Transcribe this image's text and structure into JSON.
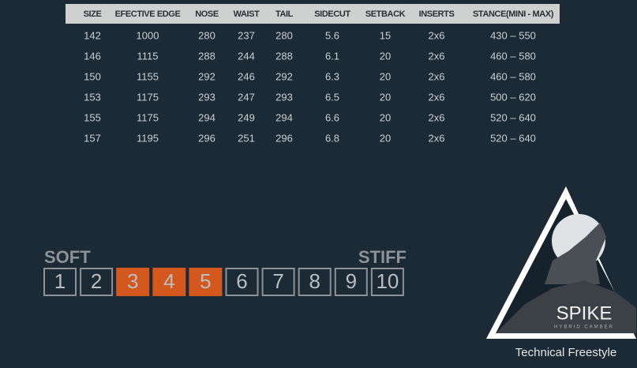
{
  "table": {
    "header": [
      "SIZE",
      "EFECTIVE EDGE",
      "NOSE",
      "WAIST",
      "TAIL",
      "SIDECUT",
      "SETBACK",
      "INSERTS",
      "STANCE(MINI - MAX)"
    ],
    "rows": [
      [
        "142",
        "1000",
        "280",
        "237",
        "280",
        "5.6",
        "15",
        "2x6",
        "430 – 550"
      ],
      [
        "146",
        "1115",
        "288",
        "244",
        "288",
        "6.1",
        "20",
        "2x6",
        "460 – 580"
      ],
      [
        "150",
        "1155",
        "292",
        "246",
        "292",
        "6.3",
        "20",
        "2x6",
        "460 – 580"
      ],
      [
        "153",
        "1175",
        "293",
        "247",
        "293",
        "6.5",
        "20",
        "2x6",
        "500 – 620"
      ],
      [
        "155",
        "1175",
        "294",
        "249",
        "294",
        "6.6",
        "20",
        "2x6",
        "520 – 640"
      ],
      [
        "157",
        "1195",
        "296",
        "251",
        "296",
        "6.8",
        "20",
        "2x6",
        "520 – 640"
      ]
    ]
  },
  "flex": {
    "soft_label": "SOFT",
    "stiff_label": "STIFF",
    "boxes": [
      {
        "label": "1",
        "highlighted": false
      },
      {
        "label": "2",
        "highlighted": false
      },
      {
        "label": "3",
        "highlighted": true
      },
      {
        "label": "4",
        "highlighted": true
      },
      {
        "label": "5",
        "highlighted": true
      },
      {
        "label": "6",
        "highlighted": false
      },
      {
        "label": "7",
        "highlighted": false
      },
      {
        "label": "8",
        "highlighted": false
      },
      {
        "label": "9",
        "highlighted": false
      },
      {
        "label": "10",
        "highlighted": false
      }
    ],
    "highlight_color": "#d4581e"
  },
  "logo": {
    "name": "SPIKE",
    "subtitle": "HYBRID CAMBER",
    "caption": "Technical Freestyle"
  }
}
